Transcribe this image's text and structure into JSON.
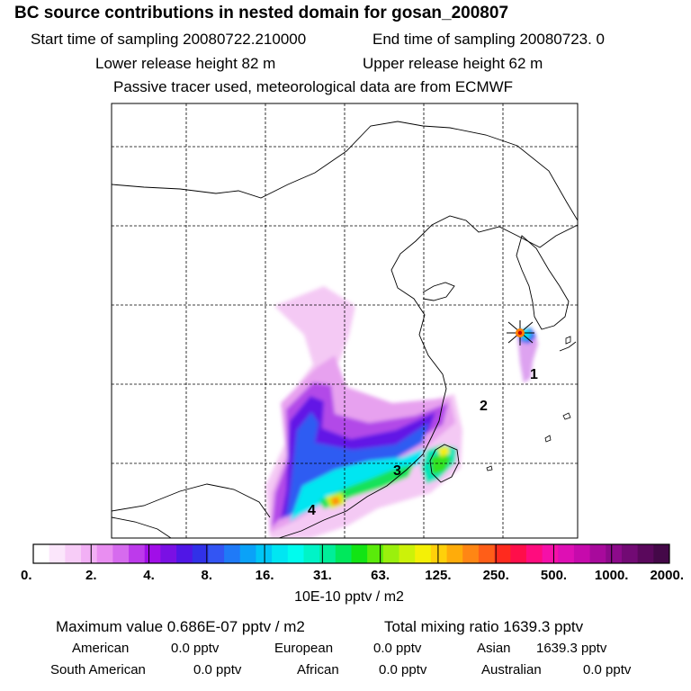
{
  "header": {
    "title": "BC  source contributions in nested domain for gosan_200807",
    "start_label": "Start time of sampling 20080722.210000",
    "end_label": "End time of sampling 20080723.     0",
    "lower_label": "Lower release height   82 m",
    "upper_label": "Upper release height   62 m",
    "tracer_label": "Passive tracer used, meteorological data are from ECMWF"
  },
  "map": {
    "track_labels": [
      "1",
      "2",
      "3",
      "4"
    ],
    "colors": {
      "coast": "#000000",
      "grid": "#000000",
      "receptor": "#ff7f00",
      "receptor_star": "#cc0000"
    }
  },
  "colorbar": {
    "unit": "10E-10 pptv / m2",
    "tick_labels": [
      "0.",
      "2.",
      "4.",
      "8.",
      "16.",
      "31.",
      "63.",
      "125.",
      "250.",
      "500.",
      "1000.",
      "2000."
    ],
    "colors": [
      "#ffffff",
      "#fbe6fb",
      "#f7ccf7",
      "#f2b0f5",
      "#e98ef1",
      "#d66bee",
      "#bd3aeb",
      "#a10ee8",
      "#7a10e4",
      "#5016e6",
      "#3131e8",
      "#3355f3",
      "#1f7af7",
      "#0aa2f8",
      "#00c6f6",
      "#00e6f2",
      "#00fcee",
      "#00f4c7",
      "#00ee99",
      "#00e85c",
      "#12e414",
      "#5aeb0a",
      "#9af00d",
      "#ccf209",
      "#f4f006",
      "#ffd00a",
      "#ffac0a",
      "#ff8614",
      "#ff5e18",
      "#ff2a1e",
      "#ff0e4a",
      "#ff0c7e",
      "#f510a8",
      "#de0fb4",
      "#c60aac",
      "#a80a9c",
      "#8c0a8a",
      "#720a74",
      "#5a085c",
      "#440848"
    ]
  },
  "stats": {
    "max_label": "Maximum value  0.686E-07 pptv / m2",
    "total_label": "Total mixing ratio     1639.3 pptv",
    "american": "American",
    "american_val": "0.0 pptv",
    "european": "European",
    "european_val": "0.0 pptv",
    "asian": "Asian",
    "asian_val": "1639.3 pptv",
    "south_american": "South American",
    "south_american_val": "0.0 pptv",
    "african": "African",
    "african_val": "0.0 pptv",
    "australian": "Australian",
    "australian_val": "0.0 pptv"
  }
}
